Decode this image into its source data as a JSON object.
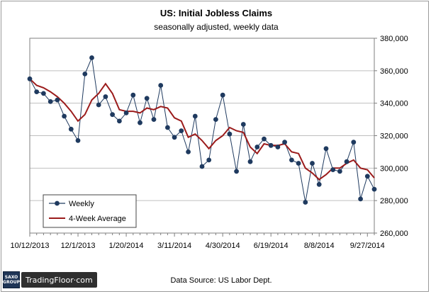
{
  "chart_data": {
    "type": "line",
    "title": "US: Initial Jobless Claims",
    "subtitle": "seasonally  adjusted,  weekly data",
    "source": "Data Source: US Labor Dept.",
    "ylim": [
      260000,
      380000
    ],
    "y_ticks": [
      "260,000",
      "280,000",
      "300,000",
      "320,000",
      "340,000",
      "360,000",
      "380,000"
    ],
    "x_tick_labels": [
      "10/12/2013",
      "12/1/2013",
      "1/20/2014",
      "3/11/2014",
      "4/30/2014",
      "6/19/2014",
      "8/8/2014",
      "9/27/2014"
    ],
    "x_tick_index": [
      0,
      7,
      14,
      21,
      28,
      35,
      42,
      49
    ],
    "grid": "horizontal",
    "legend": {
      "placement": "bottom-left",
      "entries": [
        "Weekly",
        "4-Week Average"
      ]
    },
    "series": [
      {
        "name": "Weekly",
        "color": "#1f3a5f",
        "marker": "circle",
        "values": [
          355000,
          347000,
          346000,
          341000,
          342000,
          332000,
          324000,
          317000,
          358000,
          368000,
          339000,
          344000,
          333000,
          329000,
          334000,
          345000,
          328000,
          343000,
          330000,
          351000,
          325000,
          319000,
          323000,
          310000,
          332000,
          301000,
          305000,
          330000,
          345000,
          321000,
          298000,
          327000,
          304000,
          313000,
          318000,
          314000,
          313000,
          316000,
          305000,
          303000,
          279000,
          303000,
          290000,
          312000,
          299000,
          298000,
          304000,
          316000,
          281000,
          295000,
          287000
        ]
      },
      {
        "name": "4-Week Average",
        "color": "#9b1b1b",
        "marker": "none",
        "values": [
          355000,
          351000,
          349500,
          347000,
          344000,
          340000,
          335000,
          329000,
          333000,
          342000,
          346000,
          352000,
          346000,
          336000,
          335000,
          335000,
          334000,
          337000,
          336000,
          338000,
          337000,
          331000,
          329000,
          319000,
          321000,
          317000,
          312000,
          317000,
          320000,
          325000,
          323000,
          322000,
          313000,
          309000,
          315000,
          314000,
          314000,
          315000,
          310000,
          309000,
          300000,
          297000,
          293000,
          296000,
          300000,
          300000,
          303000,
          305000,
          300000,
          299000,
          294000
        ]
      }
    ]
  },
  "brand": {
    "saxo_line1": "SAXO",
    "saxo_line2": "GROUP",
    "tradingfloor": "TradingFloor·com"
  }
}
